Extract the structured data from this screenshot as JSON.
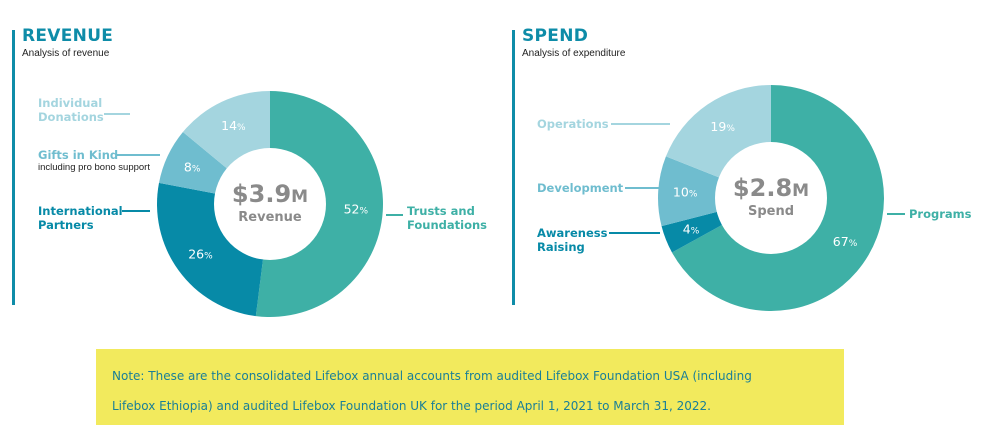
{
  "colors": {
    "accent": "#0e8ca8",
    "light_blue": "#a4d5df",
    "mid_blue": "#6fbdcf",
    "dark_blue": "#078aa7",
    "teal": "#3eb0a6",
    "note_bg": "#f2ea5d",
    "center_text": "#8a8a8a"
  },
  "revenue": {
    "title": "REVENUE",
    "subtitle": "Analysis of revenue",
    "center_amount": "$3.9",
    "center_unit": "M",
    "center_label": "Revenue"
  },
  "spend": {
    "title": "SPEND",
    "subtitle": "Analysis of expenditure",
    "center_amount": "$2.8",
    "center_unit": "M",
    "center_label": "Spend"
  },
  "note": {
    "line1": "Note: These are the consolidated Lifebox annual accounts from audited Lifebox Foundation USA (including",
    "line2": "Lifebox Ethiopia) and audited Lifebox Foundation UK for the period April 1, 2021 to March 31, 2022."
  },
  "chart_data": [
    {
      "type": "pie",
      "title": "REVENUE",
      "subtitle": "Analysis of revenue",
      "center_text": "$3.9M Revenue",
      "unit": "%",
      "slices": [
        {
          "label_lines": [
            "Trusts and",
            "Foundations"
          ],
          "value": 52,
          "color": "#3eb0a6"
        },
        {
          "label_lines": [
            "International",
            "Partners"
          ],
          "value": 26,
          "color": "#078aa7"
        },
        {
          "label_lines": [
            "Gifts in Kind"
          ],
          "note": "including pro bono support",
          "value": 8,
          "color": "#6fbdcf"
        },
        {
          "label_lines": [
            "Individual",
            "Donations"
          ],
          "value": 14,
          "color": "#a4d5df"
        }
      ]
    },
    {
      "type": "pie",
      "title": "SPEND",
      "subtitle": "Analysis of expenditure",
      "center_text": "$2.8M Spend",
      "unit": "%",
      "slices": [
        {
          "label_lines": [
            "Programs"
          ],
          "value": 67,
          "color": "#3eb0a6"
        },
        {
          "label_lines": [
            "Awareness",
            "Raising"
          ],
          "value": 4,
          "color": "#078aa7"
        },
        {
          "label_lines": [
            "Development"
          ],
          "value": 10,
          "color": "#6fbdcf"
        },
        {
          "label_lines": [
            "Operations"
          ],
          "value": 19,
          "color": "#a4d5df"
        }
      ]
    }
  ]
}
